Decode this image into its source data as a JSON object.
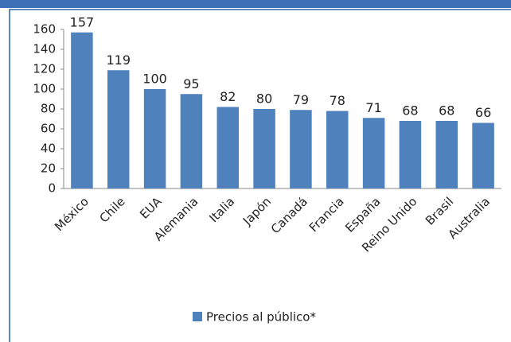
{
  "chart_data": {
    "type": "bar",
    "categories": [
      "México",
      "Chile",
      "EUA",
      "Alemania",
      "Italia",
      "Japón",
      "Canadá",
      "Francia",
      "España",
      "Reino Unido",
      "Brasil",
      "Australia"
    ],
    "series": [
      {
        "name": "Precios al público*",
        "color": "#4f81bd",
        "values": [
          157,
          119,
          100,
          95,
          82,
          80,
          79,
          78,
          71,
          68,
          68,
          66
        ]
      }
    ],
    "ylim": [
      0,
      160
    ],
    "yticks": [
      0,
      20,
      40,
      60,
      80,
      100,
      120,
      140,
      160
    ],
    "grid": false,
    "legend": "bottom"
  }
}
